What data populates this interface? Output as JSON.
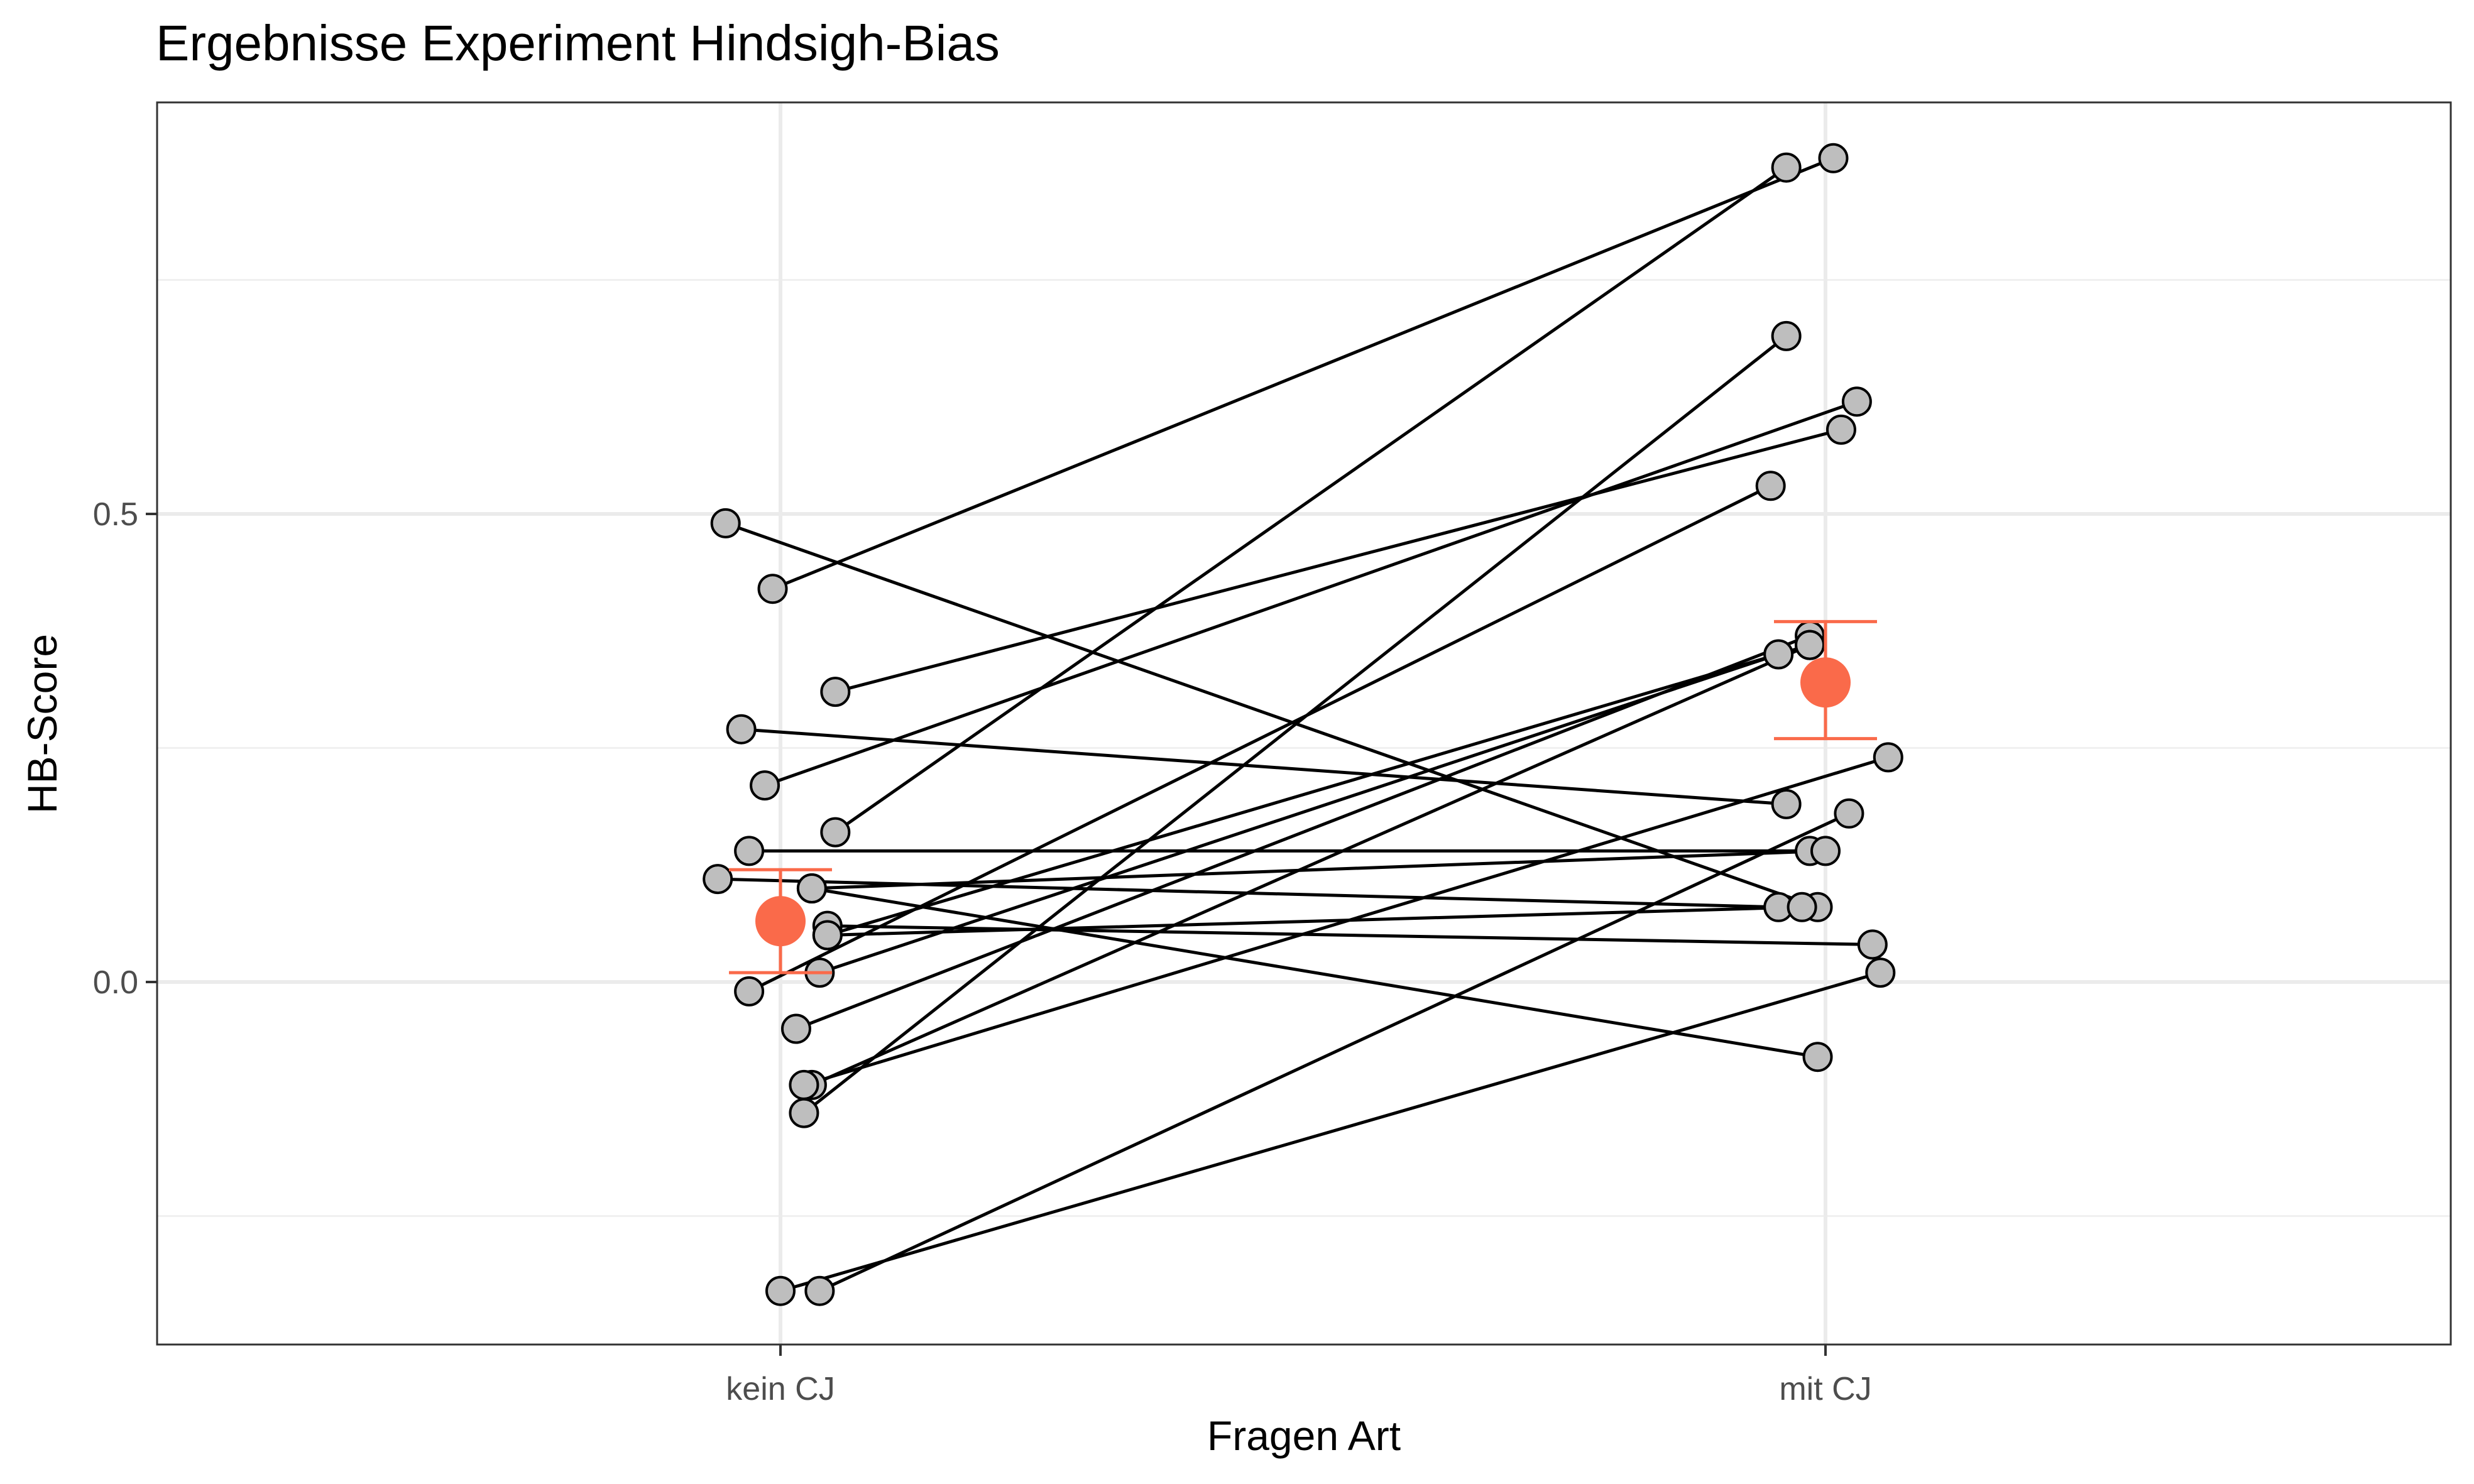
{
  "chart_data": {
    "type": "scatter",
    "title": "Ergebnisse Experiment Hindsigh-Bias",
    "xlabel": "Fragen Art",
    "ylabel": "HB-Score",
    "categories": [
      "kein CJ",
      "mit CJ"
    ],
    "ylim": [
      -0.39,
      0.94
    ],
    "yticks": [
      0.0,
      0.5
    ],
    "ytick_labels": [
      "0.0",
      "0.5"
    ],
    "grid": true,
    "point_color": "#bebebe",
    "line_color": "#000000",
    "summary_color": "#fa6a4a",
    "pairs": [
      {
        "kein": 0.49,
        "mit": 0.08,
        "jk": -0.07,
        "jm": -0.01
      },
      {
        "kein": 0.42,
        "mit": 0.88,
        "jk": -0.01,
        "jm": 0.01
      },
      {
        "kein": 0.31,
        "mit": 0.59,
        "jk": 0.07,
        "jm": 0.02
      },
      {
        "kein": 0.27,
        "mit": 0.19,
        "jk": -0.05,
        "jm": -0.05
      },
      {
        "kein": 0.21,
        "mit": 0.62,
        "jk": -0.02,
        "jm": 0.04
      },
      {
        "kein": 0.16,
        "mit": 0.87,
        "jk": 0.07,
        "jm": -0.05
      },
      {
        "kein": 0.14,
        "mit": 0.14,
        "jk": -0.04,
        "jm": -0.02
      },
      {
        "kein": 0.11,
        "mit": 0.08,
        "jk": -0.08,
        "jm": -0.06
      },
      {
        "kein": 0.1,
        "mit": -0.08,
        "jk": 0.04,
        "jm": -0.01
      },
      {
        "kein": 0.05,
        "mit": 0.08,
        "jk": 0.06,
        "jm": -0.03
      },
      {
        "kein": 0.01,
        "mit": 0.35,
        "jk": 0.05,
        "jm": -0.06
      },
      {
        "kein": -0.01,
        "mit": 0.53,
        "jk": -0.04,
        "jm": -0.07
      },
      {
        "kein": -0.05,
        "mit": 0.37,
        "jk": 0.02,
        "jm": -0.02
      },
      {
        "kein": -0.11,
        "mit": 0.36,
        "jk": 0.04,
        "jm": -0.02
      },
      {
        "kein": -0.11,
        "mit": 0.24,
        "jk": 0.03,
        "jm": 0.08
      },
      {
        "kein": -0.14,
        "mit": 0.69,
        "jk": 0.03,
        "jm": -0.05
      },
      {
        "kein": -0.33,
        "mit": 0.01,
        "jk": 0.0,
        "jm": 0.07
      },
      {
        "kein": -0.33,
        "mit": 0.18,
        "jk": 0.05,
        "jm": 0.03
      },
      {
        "kein": 0.06,
        "mit": 0.04,
        "jk": 0.06,
        "jm": 0.06
      },
      {
        "kein": 0.1,
        "mit": 0.14,
        "jk": 0.04,
        "jm": 0.0
      },
      {
        "kein": 0.05,
        "mit": 0.36,
        "jk": 0.06,
        "jm": -0.02
      }
    ],
    "summary": [
      {
        "category": "kein CJ",
        "mean": 0.065,
        "lower": 0.01,
        "upper": 0.12
      },
      {
        "category": "mit CJ",
        "mean": 0.32,
        "lower": 0.26,
        "upper": 0.385
      }
    ]
  }
}
